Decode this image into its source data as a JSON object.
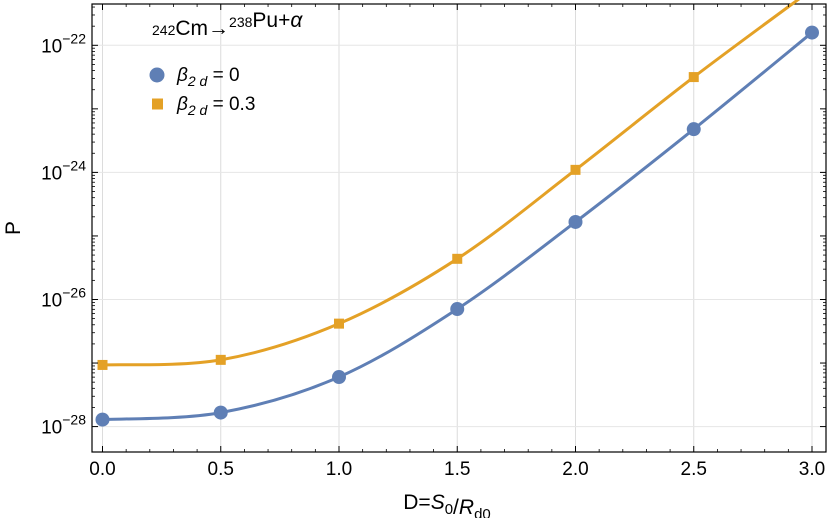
{
  "chart_data": {
    "type": "line",
    "title": "²⁴²Cm→²³⁸Pu+α",
    "xlabel": "D=S₀/R_d0",
    "ylabel": "P",
    "x": [
      0.0,
      0.5,
      1.0,
      1.5,
      2.0,
      2.5,
      3.0
    ],
    "xlim": [
      -0.05,
      3.05
    ],
    "ylim_log10": [
      -28.4,
      -21.35
    ],
    "log_y": true,
    "grid": true,
    "legend_position": "top-left",
    "x_ticks": [
      "0.0",
      "0.5",
      "1.0",
      "1.5",
      "2.0",
      "2.5",
      "3.0"
    ],
    "y_ticks": [
      {
        "exp": -28,
        "label": "10−28"
      },
      {
        "exp": -26,
        "label": "10−26"
      },
      {
        "exp": -24,
        "label": "10−24"
      },
      {
        "exp": -22,
        "label": "10−22"
      }
    ],
    "series": [
      {
        "name": "β2 d = 0",
        "marker": "circle",
        "color": "#5f7fb5",
        "log10_values": [
          -27.89,
          -27.78,
          -27.22,
          -26.15,
          -24.78,
          -23.32,
          -21.8
        ]
      },
      {
        "name": "β2 d = 0.3",
        "marker": "square",
        "color": "#e4a126",
        "log10_values": [
          -27.03,
          -26.95,
          -26.38,
          -25.36,
          -23.96,
          -22.5,
          -21.12
        ]
      }
    ]
  }
}
